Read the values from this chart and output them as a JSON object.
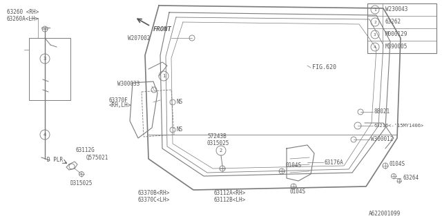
{
  "background_color": "#ffffff",
  "line_color": "#7a7a7a",
  "text_color": "#555555",
  "legend_items": [
    {
      "num": "1",
      "code": "W230043"
    },
    {
      "num": "2",
      "code": "63262"
    },
    {
      "num": "3",
      "code": "M000129"
    },
    {
      "num": "4",
      "code": "M390005"
    }
  ],
  "figsize": [
    6.4,
    3.2
  ],
  "dpi": 100
}
